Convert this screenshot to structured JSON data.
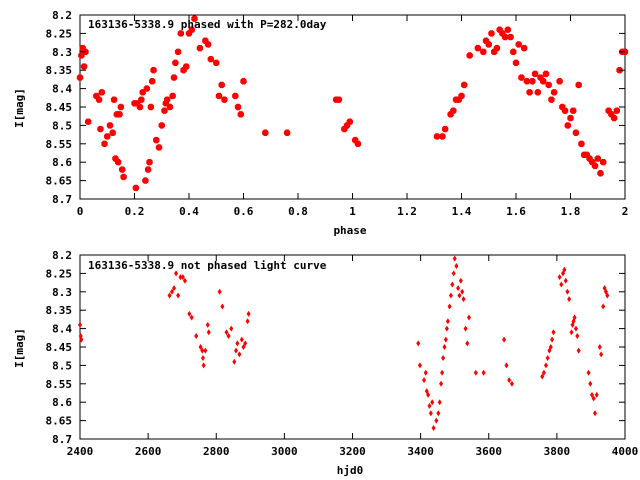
{
  "chart_data": [
    {
      "type": "scatter",
      "title": "163136-5338.9 phased with P=282.0day",
      "xlabel": "phase",
      "ylabel": "I[mag]",
      "xlim": [
        0,
        2
      ],
      "ylim": [
        8.7,
        8.2
      ],
      "y_inverted": true,
      "grid": false,
      "marker_color": "#ff0000",
      "marker": "filled-octagon",
      "x_ticks": [
        "0",
        "0.2",
        "0.4",
        "0.6",
        "0.8",
        "1",
        "1.2",
        "1.4",
        "1.6",
        "1.8",
        "2"
      ],
      "y_ticks": [
        "8.2",
        "8.25",
        "8.3",
        "8.35",
        "8.4",
        "8.45",
        "8.5",
        "8.55",
        "8.6",
        "8.65",
        "8.7"
      ],
      "series": [
        {
          "points": [
            [
              0.0,
              8.37
            ],
            [
              0.005,
              8.31
            ],
            [
              0.01,
              8.29
            ],
            [
              0.015,
              8.34
            ],
            [
              0.02,
              8.3
            ],
            [
              0.03,
              8.49
            ],
            [
              0.06,
              8.42
            ],
            [
              0.07,
              8.43
            ],
            [
              0.075,
              8.51
            ],
            [
              0.08,
              8.41
            ],
            [
              0.09,
              8.55
            ],
            [
              0.1,
              8.53
            ],
            [
              0.11,
              8.5
            ],
            [
              0.12,
              8.52
            ],
            [
              0.125,
              8.43
            ],
            [
              0.13,
              8.59
            ],
            [
              0.135,
              8.47
            ],
            [
              0.14,
              8.6
            ],
            [
              0.145,
              8.47
            ],
            [
              0.15,
              8.45
            ],
            [
              0.155,
              8.62
            ],
            [
              0.16,
              8.64
            ],
            [
              0.2,
              8.44
            ],
            [
              0.205,
              8.67
            ],
            [
              0.21,
              8.44
            ],
            [
              0.22,
              8.45
            ],
            [
              0.225,
              8.43
            ],
            [
              0.23,
              8.41
            ],
            [
              0.24,
              8.65
            ],
            [
              0.245,
              8.4
            ],
            [
              0.25,
              8.62
            ],
            [
              0.255,
              8.6
            ],
            [
              0.26,
              8.45
            ],
            [
              0.265,
              8.38
            ],
            [
              0.27,
              8.35
            ],
            [
              0.28,
              8.54
            ],
            [
              0.29,
              8.56
            ],
            [
              0.3,
              8.5
            ],
            [
              0.31,
              8.46
            ],
            [
              0.315,
              8.44
            ],
            [
              0.32,
              8.43
            ],
            [
              0.33,
              8.45
            ],
            [
              0.34,
              8.42
            ],
            [
              0.345,
              8.37
            ],
            [
              0.35,
              8.33
            ],
            [
              0.36,
              8.3
            ],
            [
              0.37,
              8.25
            ],
            [
              0.38,
              8.35
            ],
            [
              0.39,
              8.34
            ],
            [
              0.4,
              8.25
            ],
            [
              0.41,
              8.24
            ],
            [
              0.42,
              8.21
            ],
            [
              0.44,
              8.29
            ],
            [
              0.46,
              8.27
            ],
            [
              0.47,
              8.28
            ],
            [
              0.48,
              8.32
            ],
            [
              0.5,
              8.33
            ],
            [
              0.51,
              8.42
            ],
            [
              0.52,
              8.39
            ],
            [
              0.53,
              8.43
            ],
            [
              0.57,
              8.42
            ],
            [
              0.58,
              8.45
            ],
            [
              0.59,
              8.47
            ],
            [
              0.6,
              8.38
            ],
            [
              0.68,
              8.52
            ],
            [
              0.76,
              8.52
            ],
            [
              0.94,
              8.43
            ],
            [
              0.95,
              8.43
            ],
            [
              0.97,
              8.51
            ],
            [
              0.98,
              8.5
            ],
            [
              0.99,
              8.49
            ],
            [
              1.01,
              8.54
            ],
            [
              1.02,
              8.55
            ],
            [
              1.31,
              8.53
            ],
            [
              1.33,
              8.53
            ],
            [
              1.34,
              8.51
            ],
            [
              1.36,
              8.47
            ],
            [
              1.37,
              8.46
            ],
            [
              1.38,
              8.43
            ],
            [
              1.39,
              8.43
            ],
            [
              1.4,
              8.42
            ],
            [
              1.41,
              8.39
            ],
            [
              1.43,
              8.31
            ],
            [
              1.46,
              8.29
            ],
            [
              1.48,
              8.3
            ],
            [
              1.49,
              8.27
            ],
            [
              1.5,
              8.28
            ],
            [
              1.51,
              8.25
            ],
            [
              1.52,
              8.3
            ],
            [
              1.53,
              8.29
            ],
            [
              1.54,
              8.24
            ],
            [
              1.55,
              8.25
            ],
            [
              1.56,
              8.26
            ],
            [
              1.57,
              8.24
            ],
            [
              1.58,
              8.26
            ],
            [
              1.59,
              8.3
            ],
            [
              1.6,
              8.33
            ],
            [
              1.61,
              8.28
            ],
            [
              1.62,
              8.37
            ],
            [
              1.63,
              8.29
            ],
            [
              1.64,
              8.38
            ],
            [
              1.65,
              8.41
            ],
            [
              1.66,
              8.38
            ],
            [
              1.67,
              8.36
            ],
            [
              1.68,
              8.41
            ],
            [
              1.69,
              8.37
            ],
            [
              1.7,
              8.38
            ],
            [
              1.71,
              8.36
            ],
            [
              1.72,
              8.39
            ],
            [
              1.73,
              8.43
            ],
            [
              1.74,
              8.41
            ],
            [
              1.76,
              8.38
            ],
            [
              1.77,
              8.45
            ],
            [
              1.78,
              8.46
            ],
            [
              1.79,
              8.5
            ],
            [
              1.8,
              8.48
            ],
            [
              1.81,
              8.46
            ],
            [
              1.82,
              8.52
            ],
            [
              1.83,
              8.39
            ],
            [
              1.84,
              8.55
            ],
            [
              1.85,
              8.58
            ],
            [
              1.86,
              8.58
            ],
            [
              1.87,
              8.59
            ],
            [
              1.88,
              8.6
            ],
            [
              1.89,
              8.61
            ],
            [
              1.9,
              8.59
            ],
            [
              1.91,
              8.63
            ],
            [
              1.92,
              8.6
            ],
            [
              1.94,
              8.46
            ],
            [
              1.95,
              8.47
            ],
            [
              1.96,
              8.48
            ],
            [
              1.97,
              8.46
            ],
            [
              1.98,
              8.35
            ],
            [
              1.99,
              8.3
            ],
            [
              2.0,
              8.3
            ]
          ]
        }
      ]
    },
    {
      "type": "scatter",
      "title": "163136-5338.9 not phased light curve",
      "xlabel": "hjd0",
      "ylabel": "I[mag]",
      "xlim": [
        2400,
        4000
      ],
      "ylim": [
        8.7,
        8.2
      ],
      "y_inverted": true,
      "grid": false,
      "marker_color": "#ff0000",
      "marker": "small-diamond",
      "x_ticks": [
        "2400",
        "2600",
        "2800",
        "3000",
        "3200",
        "3400",
        "3600",
        "3800",
        "4000"
      ],
      "y_ticks": [
        "8.2",
        "8.25",
        "8.3",
        "8.35",
        "8.4",
        "8.45",
        "8.5",
        "8.55",
        "8.6",
        "8.65",
        "8.7"
      ],
      "series": [
        {
          "points": [
            [
              2400,
              8.39
            ],
            [
              2402,
              8.42
            ],
            [
              2404,
              8.43
            ],
            [
              2663,
              8.31
            ],
            [
              2670,
              8.3
            ],
            [
              2676,
              8.29
            ],
            [
              2682,
              8.25
            ],
            [
              2688,
              8.31
            ],
            [
              2695,
              8.26
            ],
            [
              2702,
              8.26
            ],
            [
              2708,
              8.27
            ],
            [
              2721,
              8.36
            ],
            [
              2728,
              8.37
            ],
            [
              2741,
              8.42
            ],
            [
              2754,
              8.45
            ],
            [
              2759,
              8.46
            ],
            [
              2761,
              8.48
            ],
            [
              2763,
              8.5
            ],
            [
              2768,
              8.46
            ],
            [
              2775,
              8.39
            ],
            [
              2778,
              8.41
            ],
            [
              2810,
              8.3
            ],
            [
              2818,
              8.34
            ],
            [
              2830,
              8.41
            ],
            [
              2836,
              8.42
            ],
            [
              2844,
              8.4
            ],
            [
              2853,
              8.49
            ],
            [
              2858,
              8.46
            ],
            [
              2862,
              8.44
            ],
            [
              2868,
              8.47
            ],
            [
              2875,
              8.43
            ],
            [
              2880,
              8.45
            ],
            [
              2885,
              8.44
            ],
            [
              2892,
              8.38
            ],
            [
              2895,
              8.36
            ],
            [
              3393,
              8.44
            ],
            [
              3398,
              8.5
            ],
            [
              3410,
              8.54
            ],
            [
              3415,
              8.52
            ],
            [
              3418,
              8.57
            ],
            [
              3422,
              8.58
            ],
            [
              3426,
              8.61
            ],
            [
              3430,
              8.63
            ],
            [
              3434,
              8.6
            ],
            [
              3438,
              8.67
            ],
            [
              3446,
              8.65
            ],
            [
              3452,
              8.63
            ],
            [
              3456,
              8.6
            ],
            [
              3460,
              8.55
            ],
            [
              3463,
              8.52
            ],
            [
              3466,
              8.48
            ],
            [
              3470,
              8.45
            ],
            [
              3474,
              8.43
            ],
            [
              3477,
              8.4
            ],
            [
              3480,
              8.38
            ],
            [
              3485,
              8.34
            ],
            [
              3489,
              8.31
            ],
            [
              3493,
              8.28
            ],
            [
              3497,
              8.25
            ],
            [
              3500,
              8.21
            ],
            [
              3505,
              8.23
            ],
            [
              3510,
              8.29
            ],
            [
              3514,
              8.31
            ],
            [
              3518,
              8.27
            ],
            [
              3522,
              8.3
            ],
            [
              3526,
              8.32
            ],
            [
              3532,
              8.4
            ],
            [
              3537,
              8.44
            ],
            [
              3542,
              8.37
            ],
            [
              3562,
              8.52
            ],
            [
              3585,
              8.52
            ],
            [
              3645,
              8.43
            ],
            [
              3652,
              8.5
            ],
            [
              3660,
              8.54
            ],
            [
              3668,
              8.55
            ],
            [
              3757,
              8.53
            ],
            [
              3762,
              8.52
            ],
            [
              3768,
              8.5
            ],
            [
              3773,
              8.48
            ],
            [
              3778,
              8.46
            ],
            [
              3782,
              8.45
            ],
            [
              3786,
              8.43
            ],
            [
              3790,
              8.41
            ],
            [
              3808,
              8.26
            ],
            [
              3813,
              8.28
            ],
            [
              3818,
              8.25
            ],
            [
              3822,
              8.24
            ],
            [
              3826,
              8.27
            ],
            [
              3831,
              8.3
            ],
            [
              3836,
              8.32
            ],
            [
              3843,
              8.41
            ],
            [
              3846,
              8.39
            ],
            [
              3849,
              8.38
            ],
            [
              3852,
              8.37
            ],
            [
              3856,
              8.4
            ],
            [
              3860,
              8.42
            ],
            [
              3864,
              8.46
            ],
            [
              3893,
              8.52
            ],
            [
              3898,
              8.55
            ],
            [
              3903,
              8.58
            ],
            [
              3908,
              8.59
            ],
            [
              3912,
              8.63
            ],
            [
              3917,
              8.58
            ],
            [
              3926,
              8.45
            ],
            [
              3930,
              8.47
            ],
            [
              3936,
              8.34
            ],
            [
              3940,
              8.29
            ],
            [
              3944,
              8.3
            ],
            [
              3948,
              8.31
            ]
          ]
        }
      ]
    }
  ]
}
